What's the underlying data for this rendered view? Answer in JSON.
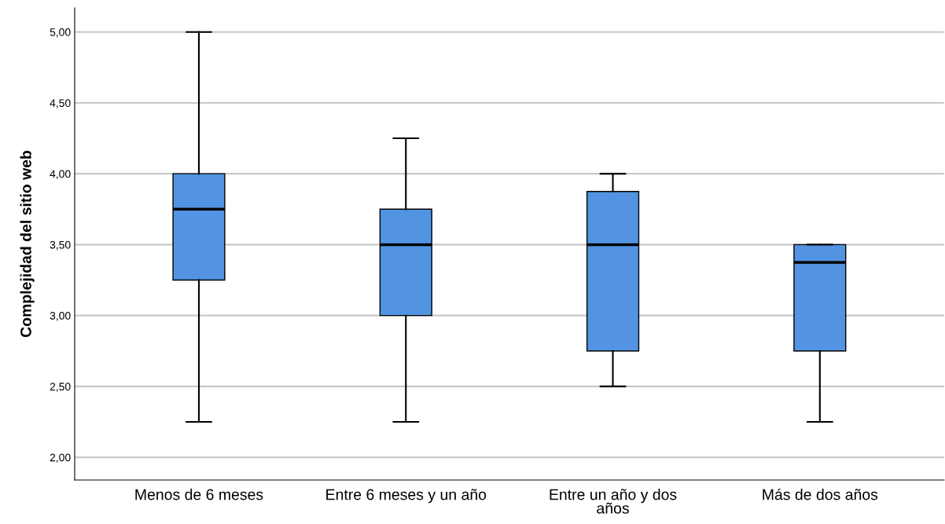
{
  "chart_data": {
    "type": "box",
    "ylabel": "Complejidad del sitio web",
    "categories": [
      "Menos de 6 meses",
      "Entre 6 meses y un año",
      "Entre un año y dos\naños",
      "Más de dos años"
    ],
    "boxes": [
      {
        "low": 2.25,
        "q1": 3.25,
        "median": 3.75,
        "q3": 4.0,
        "high": 5.0
      },
      {
        "low": 2.25,
        "q1": 3.0,
        "median": 3.5,
        "q3": 3.75,
        "high": 4.25
      },
      {
        "low": 2.5,
        "q1": 2.75,
        "median": 3.5,
        "q3": 3.875,
        "high": 4.0
      },
      {
        "low": 2.25,
        "q1": 2.75,
        "median": 3.375,
        "q3": 3.5,
        "high": 3.5
      }
    ],
    "color": "#5294e2",
    "ylim": [
      1.84,
      5.17
    ],
    "yticks": [
      {
        "value": 2.0,
        "label": "2,00"
      },
      {
        "value": 2.5,
        "label": "2,50"
      },
      {
        "value": 3.0,
        "label": "3,00"
      },
      {
        "value": 3.5,
        "label": "3,50"
      },
      {
        "value": 4.0,
        "label": "4,00"
      },
      {
        "value": 4.5,
        "label": "4,50"
      },
      {
        "value": 5.0,
        "label": "5,00"
      }
    ],
    "grid": "y"
  }
}
